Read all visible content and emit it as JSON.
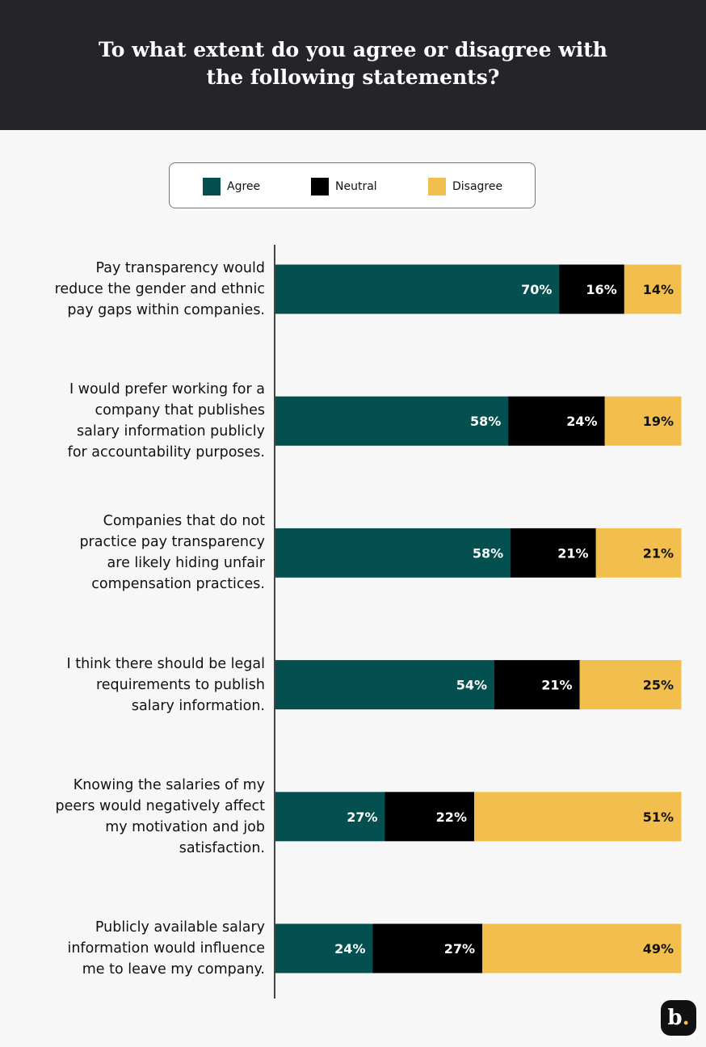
{
  "chart_data": {
    "type": "bar",
    "orientation": "horizontal",
    "stacked": true,
    "title": "To what extent do you agree or disagree with the following statements?",
    "categories": [
      "Pay transparency would reduce the gender and ethnic pay gaps within companies.",
      "I would prefer working for a company that publishes salary information publicly for accountability purposes.",
      "Companies that do not practice pay transparency are likely hiding unfair compensation practices.",
      "I think there should be legal requirements to publish salary information.",
      "Knowing the salaries of my peers would negatively affect my motivation and job satisfaction.",
      "Publicly available salary information would influence me to leave my company."
    ],
    "series": [
      {
        "name": "Agree",
        "color": "#044f4f",
        "values": [
          70,
          58,
          58,
          54,
          27,
          24
        ]
      },
      {
        "name": "Neutral",
        "color": "#000000",
        "values": [
          16,
          24,
          21,
          21,
          22,
          27
        ]
      },
      {
        "name": "Disagree",
        "color": "#f2bf4e",
        "values": [
          14,
          19,
          21,
          25,
          51,
          49
        ]
      }
    ],
    "unit": "%",
    "legend_position": "top",
    "grid": false
  },
  "legend": {
    "items": [
      "Agree",
      "Neutral",
      "Disagree"
    ]
  },
  "logo": {
    "text": "b."
  }
}
